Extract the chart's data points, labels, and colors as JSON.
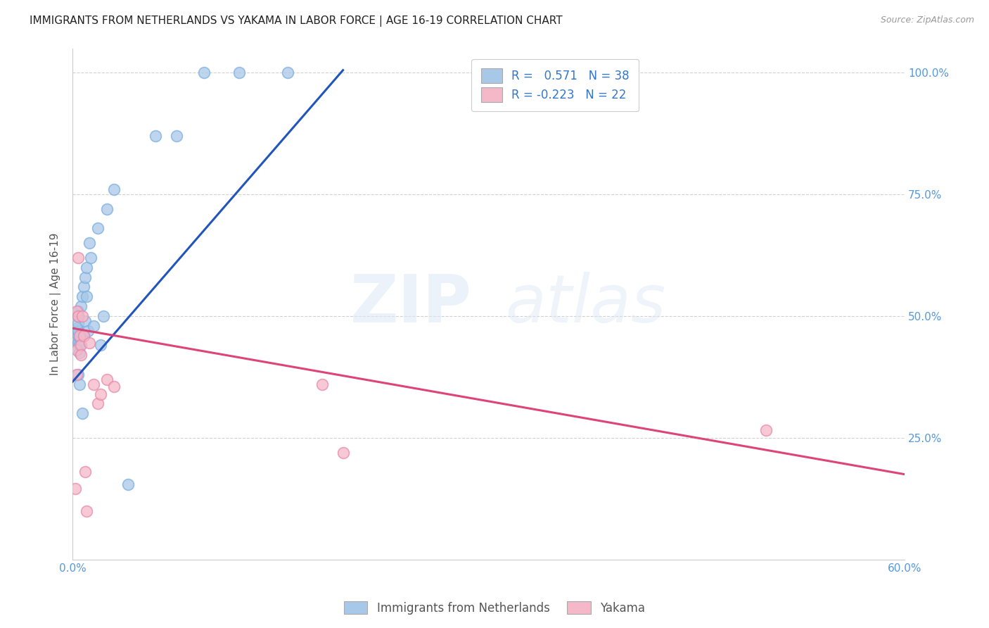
{
  "title": "IMMIGRANTS FROM NETHERLANDS VS YAKAMA IN LABOR FORCE | AGE 16-19 CORRELATION CHART",
  "source": "Source: ZipAtlas.com",
  "ylabel": "In Labor Force | Age 16-19",
  "xlim": [
    0.0,
    0.6
  ],
  "ylim": [
    0.0,
    1.05
  ],
  "xticks": [
    0.0,
    0.1,
    0.2,
    0.3,
    0.4,
    0.5,
    0.6
  ],
  "xticklabels": [
    "0.0%",
    "",
    "",
    "",
    "",
    "",
    "60.0%"
  ],
  "yticks": [
    0.0,
    0.25,
    0.5,
    0.75,
    1.0
  ],
  "right_yticklabels": [
    "",
    "25.0%",
    "50.0%",
    "75.0%",
    "100.0%"
  ],
  "legend1_label": "R =   0.571   N = 38",
  "legend2_label": "R = -0.223   N = 22",
  "blue_color": "#a8c8e8",
  "pink_color": "#f4b8c8",
  "blue_edge_color": "#7aafe0",
  "pink_edge_color": "#e888a8",
  "blue_line_color": "#2255bb",
  "pink_line_color": "#dd4477",
  "watermark_zip": "ZIP",
  "watermark_atlas": "atlas",
  "netherlands_x": [
    0.002,
    0.003,
    0.003,
    0.003,
    0.004,
    0.004,
    0.004,
    0.004,
    0.004,
    0.004,
    0.004,
    0.005,
    0.005,
    0.005,
    0.006,
    0.007,
    0.007,
    0.008,
    0.008,
    0.009,
    0.009,
    0.01,
    0.01,
    0.011,
    0.012,
    0.013,
    0.015,
    0.018,
    0.02,
    0.022,
    0.025,
    0.03,
    0.04,
    0.06,
    0.075,
    0.095,
    0.12,
    0.155
  ],
  "netherlands_y": [
    0.435,
    0.455,
    0.465,
    0.475,
    0.445,
    0.46,
    0.47,
    0.485,
    0.5,
    0.51,
    0.38,
    0.425,
    0.44,
    0.36,
    0.52,
    0.54,
    0.3,
    0.56,
    0.46,
    0.58,
    0.49,
    0.6,
    0.54,
    0.47,
    0.65,
    0.62,
    0.48,
    0.68,
    0.44,
    0.5,
    0.72,
    0.76,
    0.155,
    0.87,
    0.87,
    1.0,
    1.0,
    1.0
  ],
  "yakama_x": [
    0.002,
    0.003,
    0.003,
    0.003,
    0.004,
    0.004,
    0.005,
    0.006,
    0.006,
    0.007,
    0.008,
    0.009,
    0.01,
    0.012,
    0.015,
    0.018,
    0.02,
    0.025,
    0.03,
    0.18,
    0.195,
    0.5
  ],
  "yakama_y": [
    0.145,
    0.43,
    0.51,
    0.38,
    0.62,
    0.5,
    0.46,
    0.44,
    0.42,
    0.5,
    0.46,
    0.18,
    0.1,
    0.445,
    0.36,
    0.32,
    0.34,
    0.37,
    0.355,
    0.36,
    0.22,
    0.265
  ],
  "blue_trend_x": [
    0.0,
    0.195
  ],
  "blue_trend_y": [
    0.365,
    1.005
  ],
  "pink_trend_x": [
    0.0,
    0.6
  ],
  "pink_trend_y": [
    0.475,
    0.175
  ]
}
